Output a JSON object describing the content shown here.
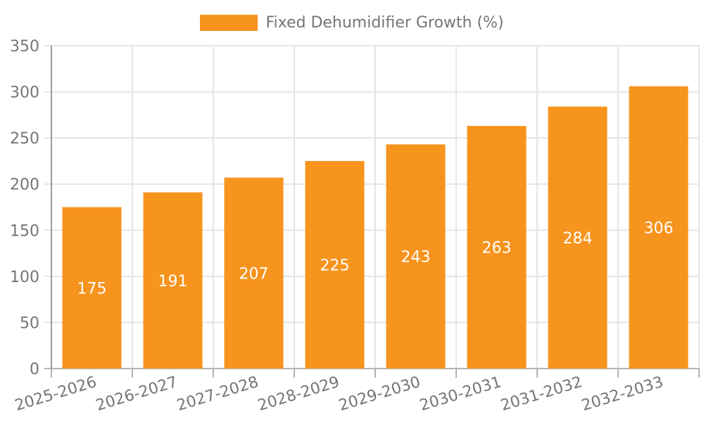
{
  "legend": {
    "label": "Fixed Dehumidifier Growth (%)"
  },
  "chart_data": {
    "type": "bar",
    "title": "",
    "xlabel": "",
    "ylabel": "",
    "categories": [
      "2025-2026",
      "2026-2027",
      "2027-2028",
      "2028-2029",
      "2029-2030",
      "2030-2031",
      "2031-2032",
      "2032-2033"
    ],
    "series": [
      {
        "name": "Fixed Dehumidifier Growth (%)",
        "values": [
          175,
          191,
          207,
          225,
          243,
          263,
          284,
          306
        ]
      }
    ],
    "value_labels_shown": true,
    "ylim": [
      0,
      350
    ],
    "yticks": [
      0,
      50,
      100,
      150,
      200,
      250,
      300,
      350
    ],
    "grid": "horizontal-and-vertical",
    "legend_position": "top-center",
    "x_label_rotation_deg": -17,
    "colors": {
      "bar": "#F7941E",
      "axis_text": "#757575",
      "value_label_text": "#FFFFFF",
      "gridline": "#E5E5E5",
      "y_axis_line": "#9A9A9A",
      "x_axis_line": "#B3B3B3",
      "tick": "#B3B3B3",
      "background": "#FFFFFF"
    }
  }
}
